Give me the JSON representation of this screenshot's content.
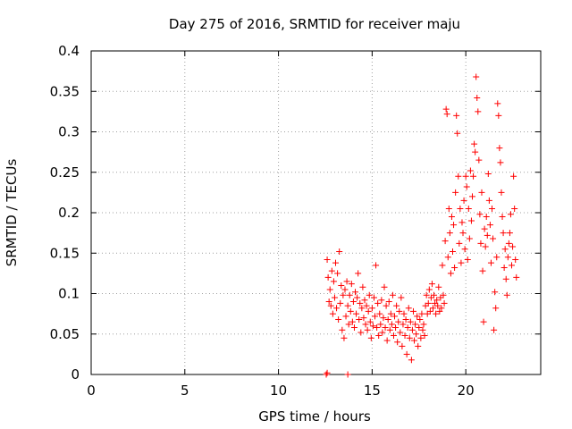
{
  "chart_data": {
    "type": "scatter",
    "title": "Day 275 of 2016, SRMTID for receiver maju",
    "xlabel": "GPS time / hours",
    "ylabel": "SRMTID / TECUs",
    "xlim": [
      0,
      24
    ],
    "ylim": [
      0,
      0.4
    ],
    "x_ticks": [
      0,
      5,
      10,
      15,
      20
    ],
    "y_ticks": [
      0,
      0.05,
      0.1,
      0.15,
      0.2,
      0.25,
      0.3,
      0.35,
      0.4
    ],
    "x_tick_labels": [
      "0",
      "5",
      "10",
      "15",
      "20"
    ],
    "y_tick_labels": [
      "0",
      "0.05",
      "0.1",
      "0.15",
      "0.2",
      "0.25",
      "0.3",
      "0.35",
      "0.4"
    ],
    "grid": true,
    "marker": "+",
    "series": [
      {
        "color": "#ff0000",
        "points": [
          [
            12.55,
            0.0
          ],
          [
            12.6,
            0.002
          ],
          [
            13.7,
            0.0
          ],
          [
            12.6,
            0.142
          ],
          [
            12.65,
            0.12
          ],
          [
            12.7,
            0.09
          ],
          [
            12.75,
            0.105
          ],
          [
            12.8,
            0.085
          ],
          [
            12.85,
            0.128
          ],
          [
            12.9,
            0.075
          ],
          [
            12.95,
            0.115
          ],
          [
            13.0,
            0.095
          ],
          [
            13.05,
            0.138
          ],
          [
            13.1,
            0.082
          ],
          [
            13.15,
            0.125
          ],
          [
            13.2,
            0.068
          ],
          [
            13.25,
            0.152
          ],
          [
            13.3,
            0.088
          ],
          [
            13.35,
            0.11
          ],
          [
            13.4,
            0.055
          ],
          [
            13.45,
            0.098
          ],
          [
            13.5,
            0.045
          ],
          [
            13.55,
            0.105
          ],
          [
            13.6,
            0.072
          ],
          [
            13.65,
            0.115
          ],
          [
            13.7,
            0.085
          ],
          [
            13.75,
            0.062
          ],
          [
            13.8,
            0.098
          ],
          [
            13.85,
            0.078
          ],
          [
            13.9,
            0.112
          ],
          [
            13.95,
            0.065
          ],
          [
            14.0,
            0.09
          ],
          [
            14.05,
            0.058
          ],
          [
            14.1,
            0.102
          ],
          [
            14.15,
            0.075
          ],
          [
            14.2,
            0.095
          ],
          [
            14.25,
            0.125
          ],
          [
            14.3,
            0.068
          ],
          [
            14.35,
            0.088
          ],
          [
            14.4,
            0.052
          ],
          [
            14.45,
            0.082
          ],
          [
            14.5,
            0.108
          ],
          [
            14.55,
            0.07
          ],
          [
            14.6,
            0.092
          ],
          [
            14.65,
            0.062
          ],
          [
            14.7,
            0.085
          ],
          [
            14.75,
            0.055
          ],
          [
            14.8,
            0.078
          ],
          [
            14.85,
            0.098
          ],
          [
            14.9,
            0.065
          ],
          [
            14.95,
            0.045
          ],
          [
            15.0,
            0.082
          ],
          [
            15.05,
            0.06
          ],
          [
            15.1,
            0.095
          ],
          [
            15.15,
            0.072
          ],
          [
            15.2,
            0.135
          ],
          [
            15.25,
            0.058
          ],
          [
            15.3,
            0.088
          ],
          [
            15.35,
            0.048
          ],
          [
            15.4,
            0.075
          ],
          [
            15.45,
            0.062
          ],
          [
            15.5,
            0.092
          ],
          [
            15.55,
            0.052
          ],
          [
            15.6,
            0.07
          ],
          [
            15.65,
            0.108
          ],
          [
            15.7,
            0.058
          ],
          [
            15.75,
            0.085
          ],
          [
            15.8,
            0.042
          ],
          [
            15.85,
            0.068
          ],
          [
            15.9,
            0.09
          ],
          [
            15.95,
            0.055
          ],
          [
            16.0,
            0.075
          ],
          [
            16.05,
            0.062
          ],
          [
            16.1,
            0.098
          ],
          [
            16.15,
            0.048
          ],
          [
            16.2,
            0.072
          ],
          [
            16.25,
            0.058
          ],
          [
            16.3,
            0.085
          ],
          [
            16.35,
            0.04
          ],
          [
            16.4,
            0.065
          ],
          [
            16.45,
            0.078
          ],
          [
            16.5,
            0.052
          ],
          [
            16.55,
            0.095
          ],
          [
            16.6,
            0.035
          ],
          [
            16.65,
            0.062
          ],
          [
            16.7,
            0.075
          ],
          [
            16.75,
            0.048
          ],
          [
            16.8,
            0.068
          ],
          [
            16.85,
            0.025
          ],
          [
            16.9,
            0.058
          ],
          [
            16.95,
            0.082
          ],
          [
            17.0,
            0.045
          ],
          [
            17.05,
            0.065
          ],
          [
            17.1,
            0.018
          ],
          [
            17.15,
            0.055
          ],
          [
            17.2,
            0.078
          ],
          [
            17.25,
            0.042
          ],
          [
            17.3,
            0.062
          ],
          [
            17.35,
            0.05
          ],
          [
            17.4,
            0.072
          ],
          [
            17.45,
            0.035
          ],
          [
            17.5,
            0.058
          ],
          [
            17.55,
            0.068
          ],
          [
            17.6,
            0.045
          ],
          [
            17.65,
            0.075
          ],
          [
            17.7,
            0.055
          ],
          [
            17.75,
            0.062
          ],
          [
            17.8,
            0.048
          ],
          [
            17.85,
            0.085
          ],
          [
            17.9,
            0.098
          ],
          [
            17.95,
            0.075
          ],
          [
            18.0,
            0.088
          ],
          [
            18.05,
            0.105
          ],
          [
            18.1,
            0.078
          ],
          [
            18.15,
            0.095
          ],
          [
            18.2,
            0.112
          ],
          [
            18.25,
            0.082
          ],
          [
            18.3,
            0.098
          ],
          [
            18.35,
            0.088
          ],
          [
            18.4,
            0.075
          ],
          [
            18.45,
            0.092
          ],
          [
            18.5,
            0.085
          ],
          [
            18.55,
            0.108
          ],
          [
            18.6,
            0.078
          ],
          [
            18.65,
            0.095
          ],
          [
            18.7,
            0.082
          ],
          [
            18.75,
            0.135
          ],
          [
            18.8,
            0.098
          ],
          [
            18.85,
            0.088
          ],
          [
            18.9,
            0.165
          ],
          [
            18.95,
            0.328
          ],
          [
            19.0,
            0.322
          ],
          [
            19.05,
            0.145
          ],
          [
            19.1,
            0.205
          ],
          [
            19.15,
            0.175
          ],
          [
            19.2,
            0.125
          ],
          [
            19.25,
            0.195
          ],
          [
            19.3,
            0.152
          ],
          [
            19.35,
            0.185
          ],
          [
            19.4,
            0.132
          ],
          [
            19.45,
            0.225
          ],
          [
            19.5,
            0.32
          ],
          [
            19.55,
            0.298
          ],
          [
            19.6,
            0.245
          ],
          [
            19.65,
            0.162
          ],
          [
            19.7,
            0.205
          ],
          [
            19.75,
            0.138
          ],
          [
            19.8,
            0.188
          ],
          [
            19.85,
            0.175
          ],
          [
            19.9,
            0.215
          ],
          [
            19.95,
            0.155
          ],
          [
            20.0,
            0.245
          ],
          [
            20.05,
            0.232
          ],
          [
            20.1,
            0.142
          ],
          [
            20.15,
            0.205
          ],
          [
            20.2,
            0.168
          ],
          [
            20.25,
            0.252
          ],
          [
            20.3,
            0.19
          ],
          [
            20.35,
            0.22
          ],
          [
            20.4,
            0.245
          ],
          [
            20.45,
            0.285
          ],
          [
            20.5,
            0.275
          ],
          [
            20.55,
            0.368
          ],
          [
            20.6,
            0.342
          ],
          [
            20.65,
            0.325
          ],
          [
            20.7,
            0.265
          ],
          [
            20.75,
            0.198
          ],
          [
            20.8,
            0.162
          ],
          [
            20.85,
            0.225
          ],
          [
            20.9,
            0.128
          ],
          [
            20.95,
            0.065
          ],
          [
            21.0,
            0.18
          ],
          [
            21.05,
            0.158
          ],
          [
            21.1,
            0.195
          ],
          [
            21.15,
            0.172
          ],
          [
            21.2,
            0.248
          ],
          [
            21.25,
            0.215
          ],
          [
            21.3,
            0.185
          ],
          [
            21.35,
            0.138
          ],
          [
            21.4,
            0.205
          ],
          [
            21.45,
            0.168
          ],
          [
            21.5,
            0.055
          ],
          [
            21.55,
            0.102
          ],
          [
            21.6,
            0.082
          ],
          [
            21.65,
            0.145
          ],
          [
            21.7,
            0.335
          ],
          [
            21.75,
            0.32
          ],
          [
            21.8,
            0.28
          ],
          [
            21.85,
            0.262
          ],
          [
            21.9,
            0.225
          ],
          [
            21.95,
            0.195
          ],
          [
            22.0,
            0.175
          ],
          [
            22.05,
            0.132
          ],
          [
            22.1,
            0.155
          ],
          [
            22.15,
            0.118
          ],
          [
            22.2,
            0.098
          ],
          [
            22.25,
            0.145
          ],
          [
            22.3,
            0.162
          ],
          [
            22.35,
            0.175
          ],
          [
            22.4,
            0.198
          ],
          [
            22.45,
            0.135
          ],
          [
            22.5,
            0.158
          ],
          [
            22.55,
            0.245
          ],
          [
            22.6,
            0.205
          ],
          [
            22.65,
            0.142
          ],
          [
            22.7,
            0.12
          ]
        ]
      }
    ]
  }
}
